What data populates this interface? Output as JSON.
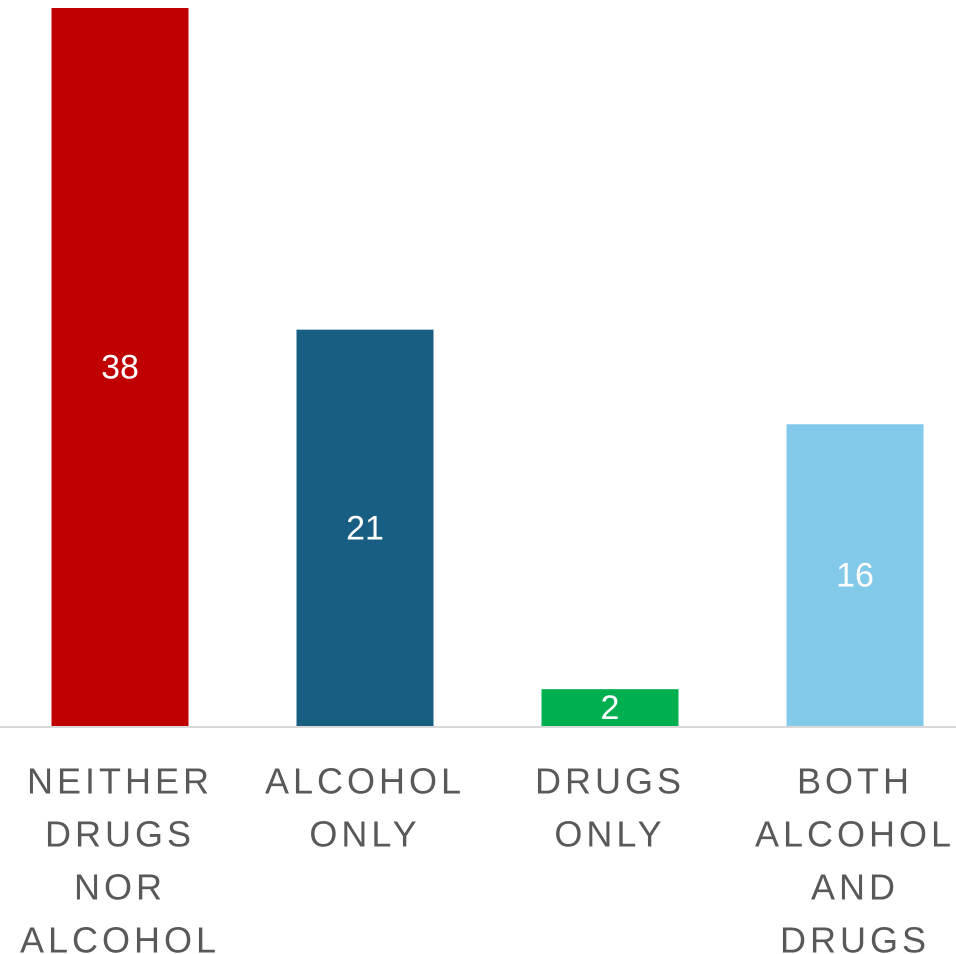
{
  "chart_data": {
    "type": "bar",
    "title": "",
    "xlabel": "",
    "ylabel": "",
    "ylim": [
      0,
      38
    ],
    "grid": false,
    "legend": "none",
    "categories": [
      [
        "NEITHER",
        "DRUGS",
        "NOR",
        "ALCOHOL"
      ],
      [
        "ALCOHOL",
        "ONLY"
      ],
      [
        "DRUGS",
        "ONLY"
      ],
      [
        "BOTH",
        "ALCOHOL",
        "AND",
        "DRUGS"
      ]
    ],
    "values": [
      38,
      21,
      2,
      16
    ],
    "data_labels": [
      "38",
      "21",
      "2",
      "16"
    ],
    "colors": [
      "#C00000",
      "#175E82",
      "#00B050",
      "#83C9EA"
    ],
    "label_color": "#FFFFFF",
    "category_label_color": "#595959",
    "axis_color": "#D9D9D9"
  }
}
